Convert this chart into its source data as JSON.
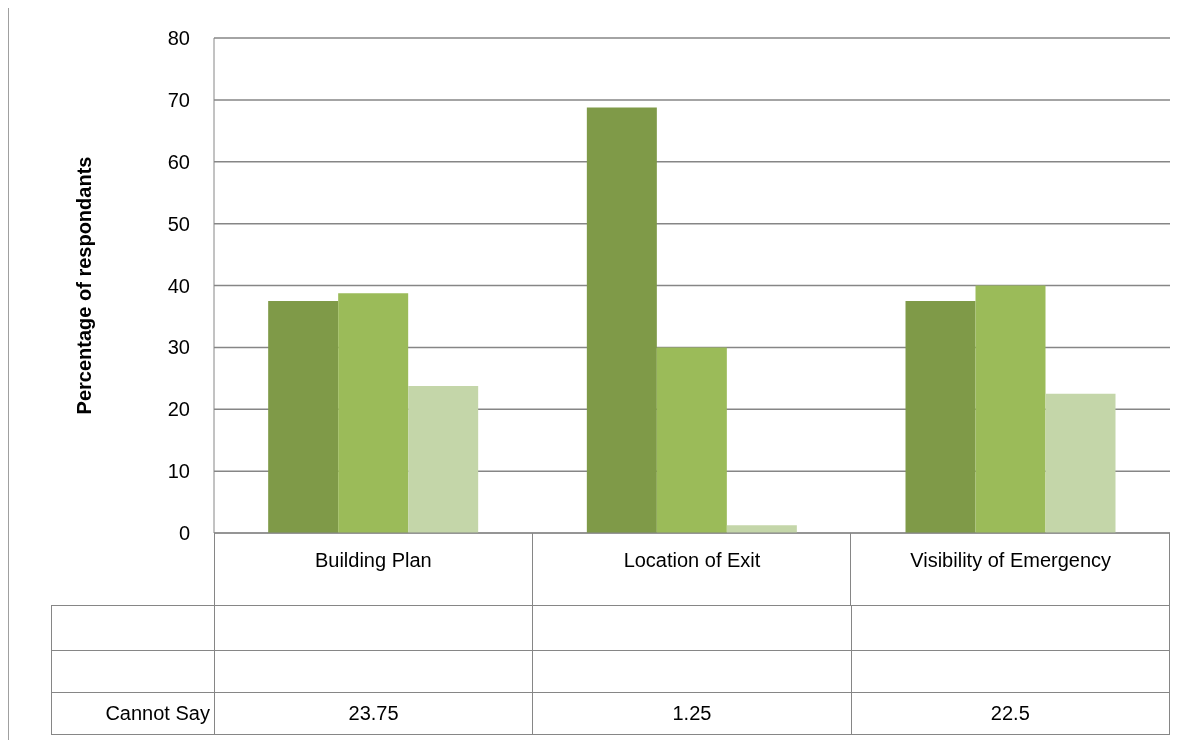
{
  "chart_data": {
    "type": "bar",
    "ylabel": "Percentage of respondants",
    "categories": [
      "Building Plan",
      "Location of Exit",
      "Visibility of Emergency"
    ],
    "series": [
      {
        "color": "#7f9a48",
        "values": [
          37.5,
          68.75,
          37.5
        ]
      },
      {
        "color": "#9bbb59",
        "values": [
          38.75,
          30,
          40
        ]
      },
      {
        "name": "Cannot Say",
        "color": "#c4d6a9",
        "values": [
          23.75,
          1.25,
          22.5
        ],
        "value_labels": [
          "23.75",
          "1.25",
          "22.5"
        ]
      }
    ],
    "ylim": [
      0,
      80
    ],
    "yticks": [
      0,
      10,
      20,
      30,
      40,
      50,
      60,
      70,
      80
    ],
    "grid": "y",
    "legend": false
  }
}
